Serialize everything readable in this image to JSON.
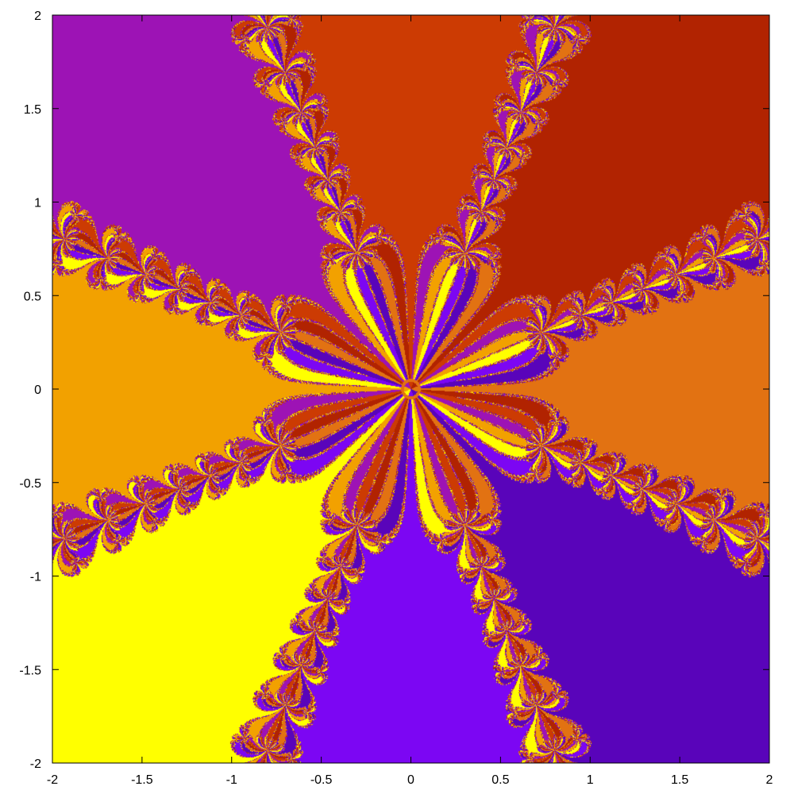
{
  "chart_data": {
    "type": "heatmap",
    "title": "",
    "xlabel": "",
    "ylabel": "",
    "xlim": [
      -2,
      2
    ],
    "ylim": [
      -2,
      2
    ],
    "grid": false,
    "legend": "none",
    "x_ticks": [
      -2,
      -1.5,
      -1,
      -0.5,
      0,
      0.5,
      1,
      1.5,
      2
    ],
    "x_tick_labels": [
      "-2",
      "-1.5",
      "-1",
      "-0.5",
      "0",
      "0.5",
      "1",
      "1.5",
      "2"
    ],
    "y_ticks": [
      -2,
      -1.5,
      -1,
      -0.5,
      0,
      0.5,
      1,
      1.5,
      2
    ],
    "y_tick_labels": [
      "-2",
      "-1.5",
      "-1",
      "-0.5",
      "0",
      "0.5",
      "1",
      "1.5",
      "2"
    ],
    "description_of_values": "Basins of attraction of Newton's method for z^8 = 1 over the complex plane; each cell colored by the root reached.",
    "polynomial_degree": 8,
    "palette": [
      "#e27212",
      "#b12301",
      "#cc3b03",
      "#9d13b5",
      "#f2a100",
      "#ffff00",
      "#7c06f3",
      "#5904ba"
    ]
  }
}
